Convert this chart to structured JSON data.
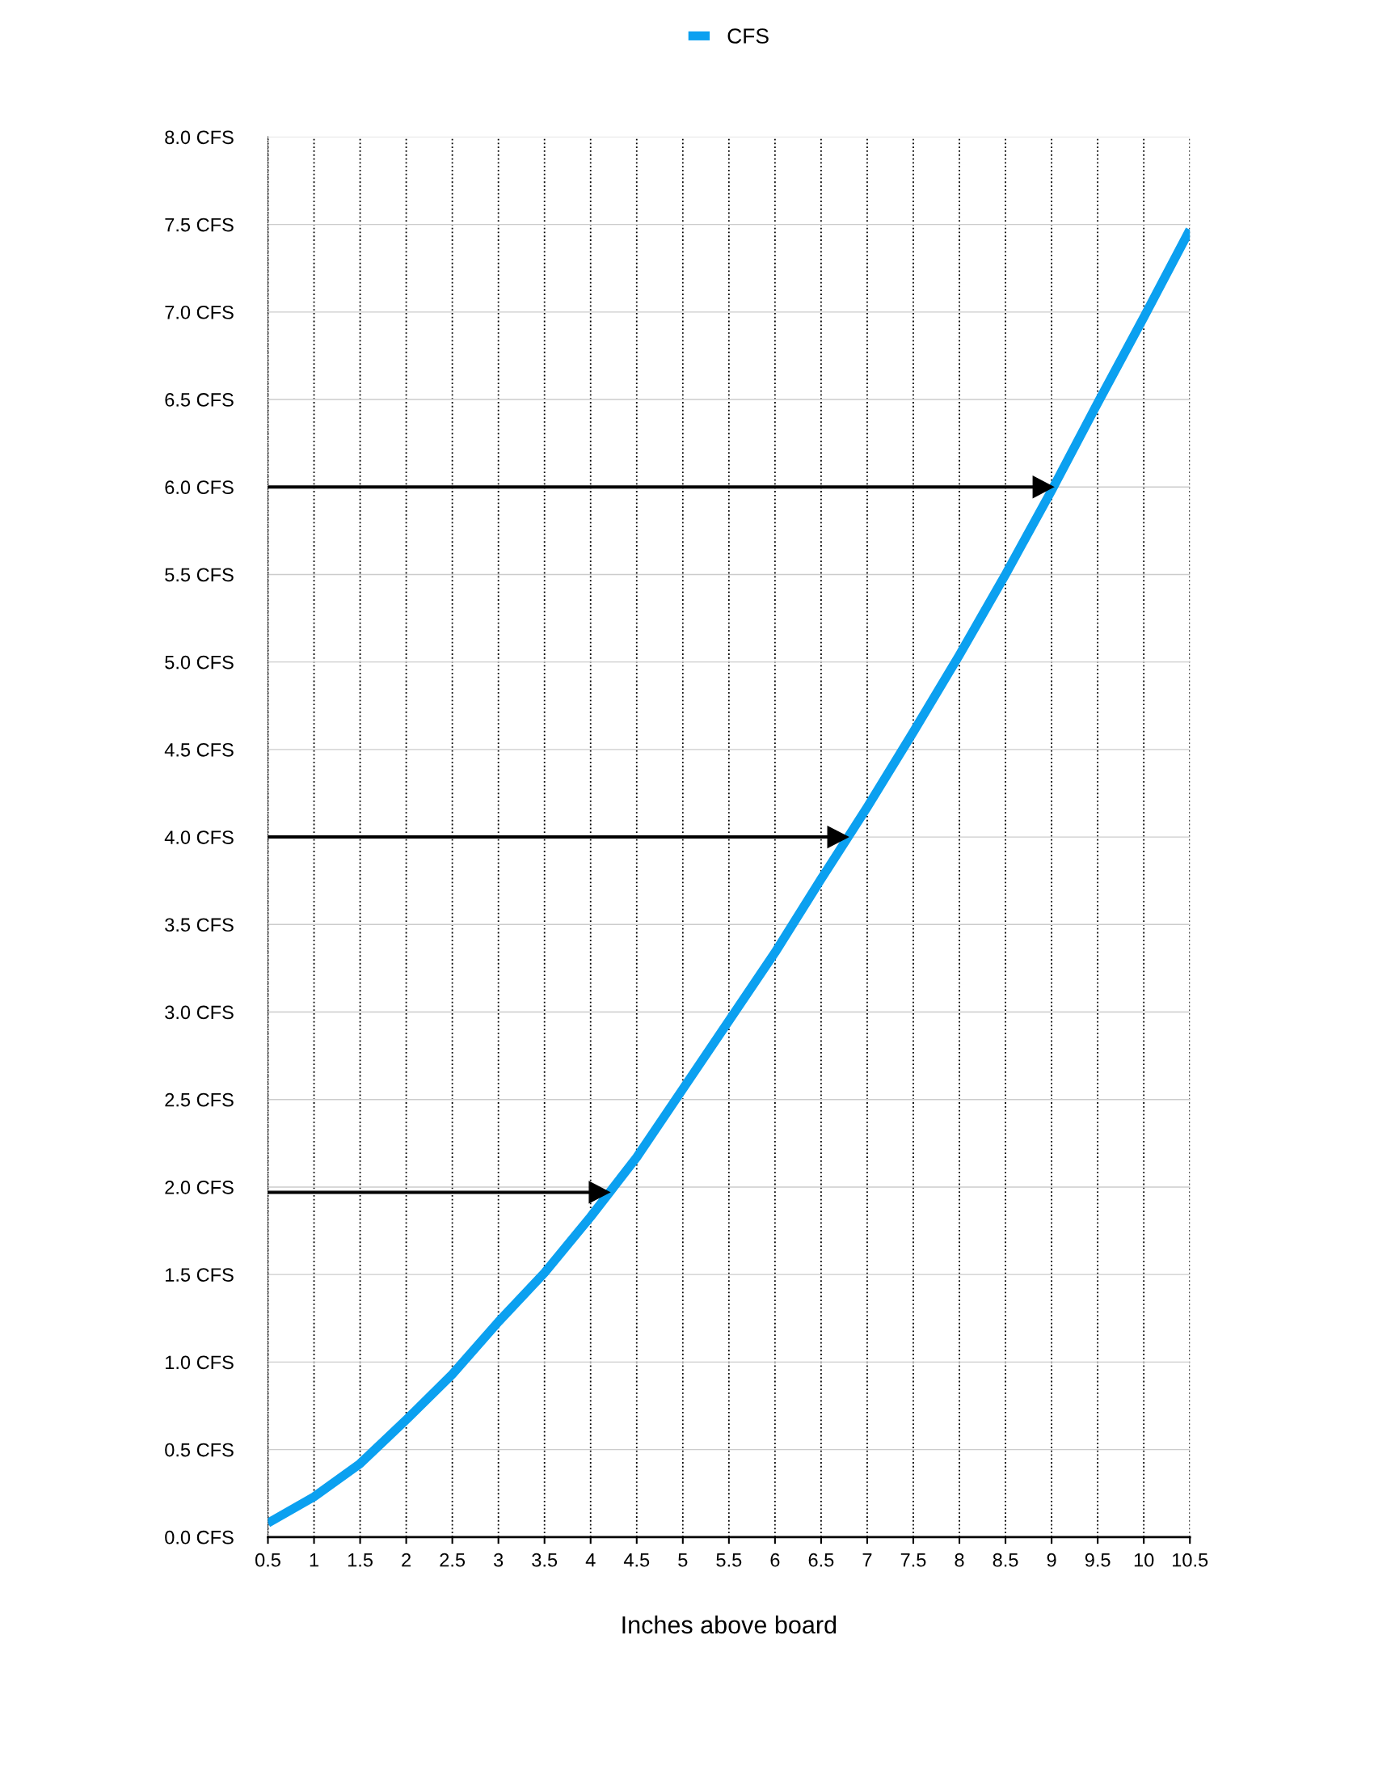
{
  "chart_data": {
    "type": "line",
    "xlabel": "Inches above board",
    "x": [
      0.5,
      1,
      1.5,
      2,
      2.5,
      3,
      3.5,
      4,
      4.5,
      5,
      5.5,
      6,
      6.5,
      7,
      7.5,
      8,
      8.5,
      9,
      9.5,
      10,
      10.5
    ],
    "series": [
      {
        "name": "CFS",
        "color": "#0ba0f0",
        "values": [
          0.08,
          0.23,
          0.42,
          0.67,
          0.93,
          1.23,
          1.51,
          1.83,
          2.17,
          2.56,
          2.95,
          3.34,
          3.76,
          4.17,
          4.6,
          5.04,
          5.5,
          5.98,
          6.48,
          6.97,
          7.47
        ]
      }
    ],
    "xlim": [
      0.5,
      10.5
    ],
    "ylim": [
      0,
      8
    ],
    "xticks": [
      0.5,
      1,
      1.5,
      2,
      2.5,
      3,
      3.5,
      4,
      4.5,
      5,
      5.5,
      6,
      6.5,
      7,
      7.5,
      8,
      8.5,
      9,
      9.5,
      10,
      10.5
    ],
    "yticks": [
      {
        "value": 0,
        "label": "0.0 CFS"
      },
      {
        "value": 0.5,
        "label": "0.5 CFS"
      },
      {
        "value": 1,
        "label": "1.0 CFS"
      },
      {
        "value": 1.5,
        "label": "1.5 CFS"
      },
      {
        "value": 2,
        "label": "2.0 CFS"
      },
      {
        "value": 2.5,
        "label": "2.5 CFS"
      },
      {
        "value": 3,
        "label": "3.0 CFS"
      },
      {
        "value": 3.5,
        "label": "3.5 CFS"
      },
      {
        "value": 4,
        "label": "4.0 CFS"
      },
      {
        "value": 4.5,
        "label": "4.5 CFS"
      },
      {
        "value": 5,
        "label": "5.0 CFS"
      },
      {
        "value": 5.5,
        "label": "5.5 CFS"
      },
      {
        "value": 6,
        "label": "6.0 CFS"
      },
      {
        "value": 6.5,
        "label": "6.5 CFS"
      },
      {
        "value": 7,
        "label": "7.0 CFS"
      },
      {
        "value": 7.5,
        "label": "7.5 CFS"
      },
      {
        "value": 8,
        "label": "8.0 CFS"
      }
    ],
    "ref_lines": [
      {
        "axis": "y",
        "value": 6,
        "color": "#000000"
      },
      {
        "axis": "y",
        "value": 4,
        "color": "#000000"
      },
      {
        "axis": "y",
        "value": 1.97,
        "color": "#000000"
      }
    ],
    "grid": true,
    "legend": "top",
    "marker": "none",
    "line_style": "solid"
  }
}
